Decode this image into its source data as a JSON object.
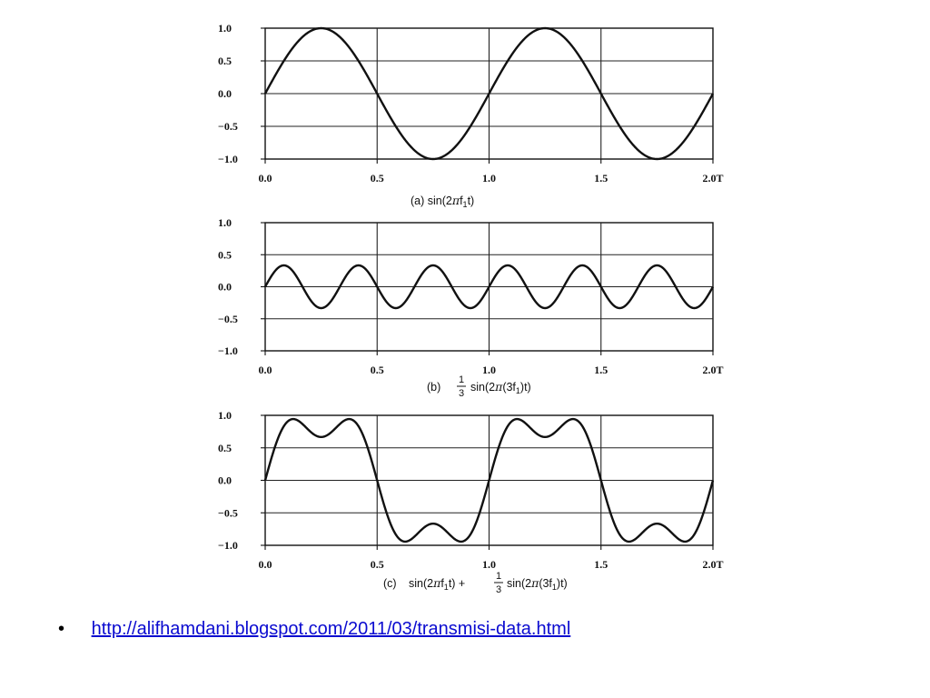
{
  "chart_data": [
    {
      "type": "line",
      "panel": "(a)",
      "caption_prefix": "(a)",
      "caption_parts": [
        "sin(2",
        "π",
        "f",
        "1",
        "t)"
      ],
      "x_ticks": [
        "0.0",
        "0.5",
        "1.0",
        "1.5",
        "2.0T"
      ],
      "y_ticks": [
        "1.0",
        "0.5",
        "0.0",
        "−0.5",
        "−1.0"
      ],
      "xlim": [
        0,
        2
      ],
      "ylim": [
        -1,
        1
      ],
      "grid": true,
      "series": [
        {
          "function": "sin(2πf1t)",
          "components": [
            {
              "amplitude": 1,
              "harmonic": 1
            }
          ]
        }
      ]
    },
    {
      "type": "line",
      "panel": "(b)",
      "caption_prefix": "(b)",
      "caption_frac": {
        "num": "1",
        "den": "3"
      },
      "caption_parts": [
        "sin(2",
        "π",
        "(3f",
        "1",
        ")t)"
      ],
      "x_ticks": [
        "0.0",
        "0.5",
        "1.0",
        "1.5",
        "2.0T"
      ],
      "y_ticks": [
        "1.0",
        "0.5",
        "0.0",
        "−0.5",
        "−1.0"
      ],
      "xlim": [
        0,
        2
      ],
      "ylim": [
        -1,
        1
      ],
      "grid": true,
      "series": [
        {
          "function": "(1/3)sin(2π(3f1)t)",
          "components": [
            {
              "amplitude": 0.3333,
              "harmonic": 3
            }
          ]
        }
      ]
    },
    {
      "type": "line",
      "panel": "(c)",
      "caption_prefix": "(c)",
      "caption_parts": [
        "sin(2",
        "π",
        "f",
        "1",
        "t) + "
      ],
      "caption_frac": {
        "num": "1",
        "den": "3"
      },
      "caption_parts2": [
        "sin(2",
        "π",
        "(3f",
        "1",
        ")t)"
      ],
      "x_ticks": [
        "0.0",
        "0.5",
        "1.0",
        "1.5",
        "2.0T"
      ],
      "y_ticks": [
        "1.0",
        "0.5",
        "0.0",
        "−0.5",
        "−1.0"
      ],
      "xlim": [
        0,
        2
      ],
      "ylim": [
        -1,
        1
      ],
      "grid": true,
      "series": [
        {
          "function": "sin(2πf1t) + (1/3)sin(2π(3f1)t)",
          "components": [
            {
              "amplitude": 1,
              "harmonic": 1
            },
            {
              "amplitude": 0.3333,
              "harmonic": 3
            }
          ]
        }
      ]
    }
  ],
  "bullet": {
    "link_text": "http://alifhamdani.blogspot.com/2011/03/transmisi-data.html"
  }
}
